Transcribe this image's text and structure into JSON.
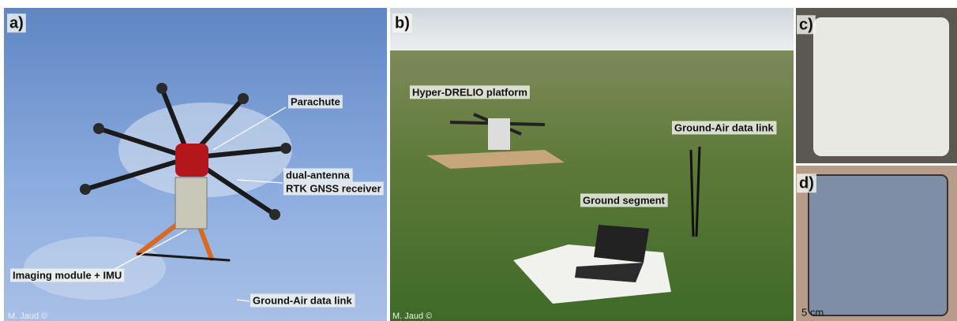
{
  "panels": [
    {
      "label": "a)",
      "annotations": [
        "Parachute",
        "dual-antenna",
        "RTK GNSS receiver",
        "Imaging module + IMU",
        "Ground-Air data link"
      ],
      "credit": "M. Jaud ©"
    },
    {
      "label": "b)",
      "annotations": [
        "Hyper-DRELIO platform",
        "Ground-Air data link",
        "Ground segment"
      ],
      "credit": "M. Jaud ©"
    },
    {
      "label": "c)"
    },
    {
      "label": "d)",
      "scale": "5 cm"
    }
  ]
}
